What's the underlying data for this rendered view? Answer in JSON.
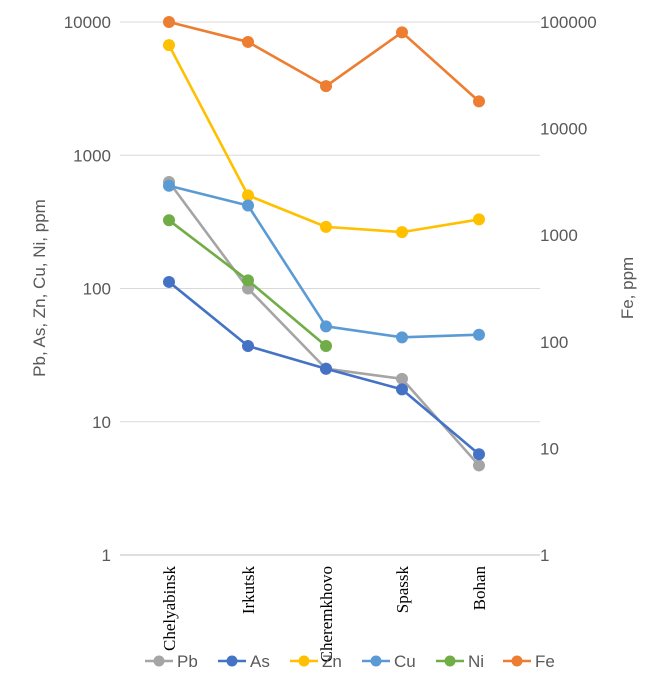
{
  "chart_data": {
    "type": "line",
    "categories": [
      "Chelyabinsk",
      "Irkutsk",
      "Cheremkhovo",
      "Spassk",
      "Bohan"
    ],
    "y_axis_left": {
      "label": "Pb, As, Zn, Cu, Ni, ppm",
      "scale": "log",
      "range": [
        1,
        10000
      ],
      "ticks": [
        "1",
        "10",
        "100",
        "1000",
        "10000"
      ]
    },
    "y_axis_right": {
      "label": "Fe, ppm",
      "scale": "log",
      "range": [
        1,
        100000
      ],
      "ticks": [
        "1",
        "10",
        "100",
        "1000",
        "10000",
        "100000"
      ]
    },
    "grid": true,
    "legend_position": "bottom",
    "series": [
      {
        "name": "Pb",
        "axis": "left",
        "color": "#A5A5A5",
        "values": [
          630,
          100,
          25,
          21,
          4.7
        ]
      },
      {
        "name": "As",
        "axis": "left",
        "color": "#4472C4",
        "values": [
          112,
          37,
          25,
          17.5,
          5.7
        ]
      },
      {
        "name": "Zn",
        "axis": "left",
        "color": "#FFC000",
        "values": [
          6700,
          500,
          290,
          265,
          330
        ]
      },
      {
        "name": "Cu",
        "axis": "left",
        "color": "#5B9BD5",
        "values": [
          590,
          420,
          52,
          43,
          45
        ]
      },
      {
        "name": "Ni",
        "axis": "left",
        "color": "#70AD47",
        "values": [
          325,
          115,
          37,
          null,
          null
        ]
      },
      {
        "name": "Fe",
        "axis": "right",
        "color": "#ED7D31",
        "values": [
          100000,
          65000,
          25000,
          80000,
          18000
        ]
      }
    ]
  }
}
